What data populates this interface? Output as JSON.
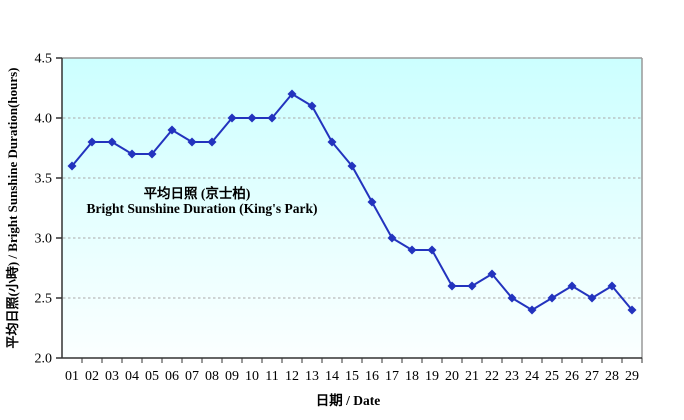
{
  "chart_data": {
    "type": "line",
    "title_zh": "平均日照 (京士柏)",
    "title_en": "Bright Sunshine Duration (King's Park)",
    "xlabel": "日期 / Date",
    "ylabel": "平均日照(小時) / Bright Sunshine Duration(hours)",
    "categories": [
      "01",
      "02",
      "03",
      "04",
      "05",
      "06",
      "07",
      "08",
      "09",
      "10",
      "11",
      "12",
      "13",
      "14",
      "15",
      "16",
      "17",
      "18",
      "19",
      "20",
      "21",
      "22",
      "23",
      "24",
      "25",
      "26",
      "27",
      "28",
      "29"
    ],
    "values": [
      3.6,
      3.8,
      3.8,
      3.7,
      3.7,
      3.9,
      3.8,
      3.8,
      4.0,
      4.0,
      4.0,
      4.2,
      4.1,
      3.8,
      3.6,
      3.3,
      3.0,
      2.9,
      2.9,
      2.6,
      2.6,
      2.7,
      2.5,
      2.4,
      2.5,
      2.6,
      2.5,
      2.6,
      2.4
    ],
    "ylim": [
      2.0,
      4.5
    ],
    "yticks": [
      2.0,
      2.5,
      3.0,
      3.5,
      4.0,
      4.5
    ],
    "ytick_format_decimals": 1,
    "grid": "horizontal-dashed",
    "marker": "diamond",
    "legend_position": "inside-upper-left-text",
    "colors": {
      "line": "#2333be",
      "marker": "#2333be",
      "title": "#8b2222",
      "plot_bg_top": "#ccffff",
      "plot_bg_bottom": "#fbffff",
      "grid": "#aaaaaa",
      "axis": "#333333",
      "frame": "#999999",
      "text": "#000000"
    }
  }
}
